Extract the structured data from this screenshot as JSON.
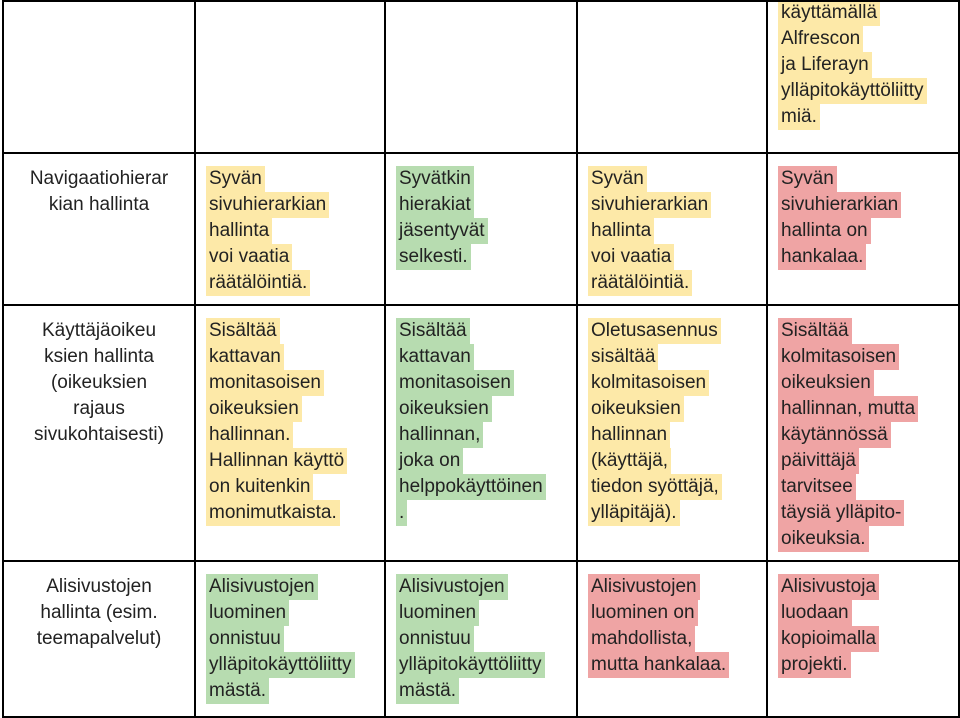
{
  "rows": [
    {
      "label": [],
      "cells": [
        {
          "color": "none",
          "lines": []
        },
        {
          "color": "none",
          "lines": []
        },
        {
          "color": "none",
          "lines": []
        },
        {
          "color": "yellow",
          "lines": [
            "käyttämällä",
            "Alfrescon",
            "ja Liferayn",
            "ylläpitokäyttöliitty",
            "miä."
          ]
        }
      ]
    },
    {
      "label": [
        "Navigaatiohierar",
        "kian hallinta"
      ],
      "cells": [
        {
          "color": "yellow",
          "lines": [
            "Syvän",
            "sivuhierarkian",
            "hallinta",
            "voi vaatia",
            "räätälöintiä."
          ]
        },
        {
          "color": "green",
          "lines": [
            "Syvätkin",
            "hierakiat",
            "jäsentyvät",
            "selkesti."
          ]
        },
        {
          "color": "yellow",
          "lines": [
            "Syvän",
            "sivuhierarkian",
            "hallinta",
            "voi vaatia",
            "räätälöintiä."
          ]
        },
        {
          "color": "red",
          "lines": [
            "Syvän",
            "sivuhierarkian",
            "hallinta on",
            "hankalaa."
          ]
        }
      ]
    },
    {
      "label": [
        "Käyttäjäoikeu",
        "ksien hallinta",
        "(oikeuksien",
        "rajaus",
        "sivukohtaisesti)"
      ],
      "cells": [
        {
          "color": "yellow",
          "lines": [
            "Sisältää",
            "kattavan",
            "monitasoisen",
            "oikeuksien",
            "hallinnan.",
            "Hallinnan käyttö",
            "on kuitenkin",
            "monimutkaista."
          ]
        },
        {
          "color": "green",
          "lines": [
            "Sisältää",
            "kattavan",
            "monitasoisen",
            "oikeuksien",
            "hallinnan,",
            "joka on",
            "helppokäyttöinen",
            "."
          ]
        },
        {
          "color": "yellow",
          "lines": [
            "Oletusasennus",
            "sisältää",
            "kolmitasoisen",
            "oikeuksien",
            "hallinnan",
            "(käyttäjä,",
            "tiedon syöttäjä,",
            "ylläpitäjä)."
          ]
        },
        {
          "color": "red",
          "lines": [
            "Sisältää",
            "kolmitasoisen",
            "oikeuksien",
            "hallinnan, mutta",
            "käytännössä",
            "päivittäjä",
            "tarvitsee",
            "täysiä ylläpito-",
            "oikeuksia."
          ]
        }
      ]
    },
    {
      "label": [
        "Alisivustojen",
        "hallinta (esim.",
        "teemapalvelut)"
      ],
      "cells": [
        {
          "color": "green",
          "lines": [
            "Alisivustojen",
            "luominen",
            "onnistuu",
            "ylläpitokäyttöliitty",
            "mästä."
          ]
        },
        {
          "color": "green",
          "lines": [
            "Alisivustojen",
            "luominen",
            "onnistuu",
            "ylläpitokäyttöliitty",
            "mästä."
          ]
        },
        {
          "color": "red",
          "lines": [
            "Alisivustojen",
            "luominen on",
            "mahdollista,",
            "mutta hankalaa."
          ]
        },
        {
          "color": "red",
          "lines": [
            "Alisivustoja",
            "luodaan",
            "kopioimalla",
            "projekti."
          ]
        }
      ]
    }
  ]
}
